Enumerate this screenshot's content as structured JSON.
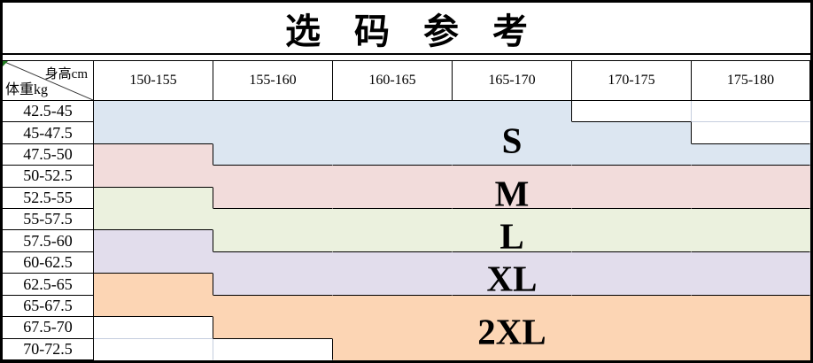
{
  "title": "选 码 参 考",
  "chart_data": {
    "type": "table",
    "title": "选码参考",
    "corner": {
      "top_right": "身高cm",
      "bottom_left": "体重kg"
    },
    "columns": [
      "150-155",
      "155-160",
      "160-165",
      "165-170",
      "170-175",
      "175-180"
    ],
    "rows": [
      {
        "weight": "42.5-45",
        "cells": [
          "S",
          "S",
          "S",
          "S",
          "",
          ""
        ]
      },
      {
        "weight": "45-47.5",
        "cells": [
          "S",
          "S",
          "S",
          "S",
          "S",
          ""
        ]
      },
      {
        "weight": "47.5-50",
        "cells": [
          "M",
          "S",
          "S",
          "S",
          "S",
          "S"
        ]
      },
      {
        "weight": "50-52.5",
        "cells": [
          "M",
          "M",
          "M",
          "M",
          "M",
          "M"
        ]
      },
      {
        "weight": "52.5-55",
        "cells": [
          "L",
          "M",
          "M",
          "M",
          "M",
          "M"
        ]
      },
      {
        "weight": "55-57.5",
        "cells": [
          "L",
          "L",
          "L",
          "L",
          "L",
          "L"
        ]
      },
      {
        "weight": "57.5-60",
        "cells": [
          "XL",
          "L",
          "L",
          "L",
          "L",
          "L"
        ]
      },
      {
        "weight": "60-62.5",
        "cells": [
          "XL",
          "XL",
          "XL",
          "XL",
          "XL",
          "XL"
        ]
      },
      {
        "weight": "62.5-65",
        "cells": [
          "2XL",
          "XL",
          "XL",
          "XL",
          "XL",
          "XL"
        ]
      },
      {
        "weight": "65-67.5",
        "cells": [
          "2XL",
          "2XL",
          "2XL",
          "2XL",
          "2XL",
          "2XL"
        ]
      },
      {
        "weight": "67.5-70",
        "cells": [
          "",
          "2XL",
          "2XL",
          "2XL",
          "2XL",
          "2XL"
        ]
      },
      {
        "weight": "70-72.5",
        "cells": [
          "",
          "",
          "2XL",
          "2XL",
          "2XL",
          "2XL"
        ]
      }
    ],
    "size_labels": [
      "S",
      "M",
      "L",
      "XL",
      "2XL"
    ],
    "size_colors": {
      "S": "#dce6f1",
      "M": "#f2dcdb",
      "L": "#ebf1de",
      "XL": "#e2ddec",
      "2XL": "#fcd5b4"
    }
  },
  "style": {
    "border_color": "#000000",
    "grid_line_color": "#c5cede",
    "marker_green": "#217a21",
    "empty_cell_color": "#ffffff"
  }
}
